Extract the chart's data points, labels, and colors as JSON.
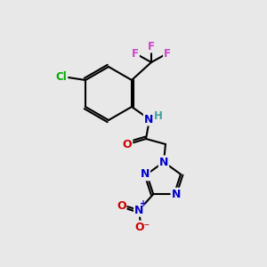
{
  "background_color": "#e8e8e8",
  "bond_color": "#000000",
  "bond_width": 1.5,
  "atom_colors": {
    "C": "#000000",
    "H": "#40a0a0",
    "N": "#0000cc",
    "O": "#cc0000",
    "F": "#cc44cc",
    "Cl": "#00aa00"
  }
}
